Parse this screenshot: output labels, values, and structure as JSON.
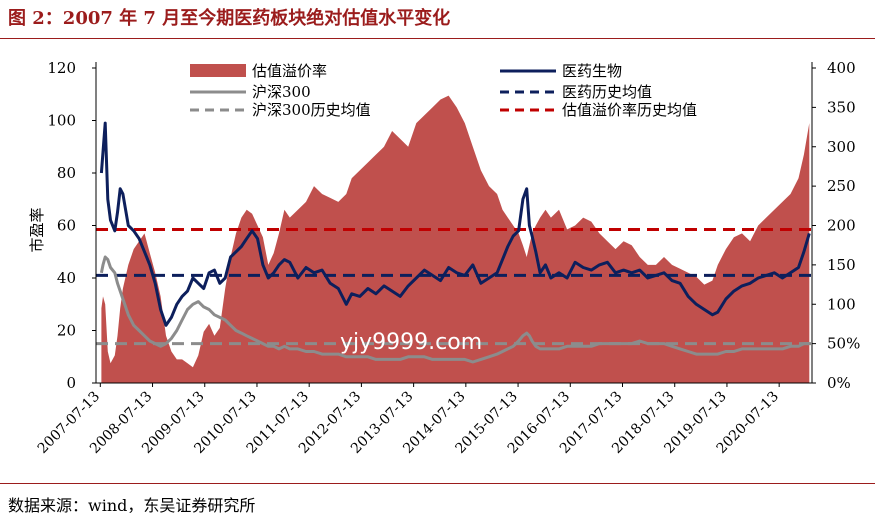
{
  "header": {
    "title": "图 2：2007 年 7 月至今期医药板块绝对估值水平变化"
  },
  "footer": {
    "source": "数据来源：wind，东吴证券研究所"
  },
  "watermark": {
    "text": "yjy9999.com"
  },
  "colors": {
    "area": "#c0504d",
    "pharma": "#0d1f5c",
    "hs300": "#8c8c8c",
    "hs300_avg": "#8c8c8c",
    "pharma_avg": "#0d1f5c",
    "premium_avg": "#c00000",
    "title": "#9b1c1c"
  },
  "chart_data": {
    "type": "line",
    "title": "",
    "ylabel": "市盈率",
    "ylim": [
      0,
      120
    ],
    "y2lim": [
      0,
      400
    ],
    "y_ticks": [
      "0",
      "20",
      "40",
      "60",
      "80",
      "100",
      "120"
    ],
    "y2_ticks": [
      "0%",
      "50%",
      "100",
      "150",
      "200",
      "250",
      "300",
      "350",
      "400"
    ],
    "x_ticks": [
      "2007-07-13",
      "2008-07-13",
      "2009-07-13",
      "2010-07-13",
      "2011-07-13",
      "2012-07-13",
      "2013-07-13",
      "2014-07-13",
      "2015-07-13",
      "2016-07-13",
      "2017-07-13",
      "2018-07-13",
      "2019-07-13",
      "2020-07-13"
    ],
    "x_range": [
      2007.45,
      2020.75
    ],
    "legend": [
      {
        "name": "估值溢价率",
        "style": "area"
      },
      {
        "name": "医药生物",
        "style": "solid"
      },
      {
        "name": "沪深300",
        "style": "solid"
      },
      {
        "name": "医药历史均值",
        "style": "dashed"
      },
      {
        "name": "沪深300历史均值",
        "style": "dashed"
      },
      {
        "name": "估值溢价率历史均值",
        "style": "dashed"
      }
    ],
    "x": [
      2007.55,
      2007.58,
      2007.62,
      2007.67,
      2007.72,
      2007.8,
      2007.85,
      2007.9,
      2007.95,
      2008.05,
      2008.15,
      2008.25,
      2008.35,
      2008.45,
      2008.55,
      2008.65,
      2008.75,
      2008.85,
      2008.95,
      2009.05,
      2009.15,
      2009.25,
      2009.35,
      2009.45,
      2009.55,
      2009.65,
      2009.75,
      2009.85,
      2009.95,
      2010.05,
      2010.15,
      2010.25,
      2010.35,
      2010.45,
      2010.55,
      2010.65,
      2010.75,
      2010.85,
      2010.95,
      2011.05,
      2011.2,
      2011.35,
      2011.5,
      2011.65,
      2011.8,
      2011.95,
      2012.1,
      2012.2,
      2012.35,
      2012.5,
      2012.65,
      2012.8,
      2012.95,
      2013.1,
      2013.25,
      2013.4,
      2013.55,
      2013.7,
      2013.85,
      2014.0,
      2014.15,
      2014.3,
      2014.45,
      2014.6,
      2014.75,
      2014.9,
      2015.0,
      2015.1,
      2015.2,
      2015.3,
      2015.38,
      2015.45,
      2015.5,
      2015.55,
      2015.62,
      2015.7,
      2015.8,
      2015.9,
      2016.05,
      2016.2,
      2016.35,
      2016.5,
      2016.65,
      2016.8,
      2016.95,
      2017.1,
      2017.25,
      2017.4,
      2017.55,
      2017.7,
      2017.85,
      2018.0,
      2018.15,
      2018.3,
      2018.45,
      2018.6,
      2018.75,
      2018.9,
      2019.0,
      2019.15,
      2019.3,
      2019.45,
      2019.6,
      2019.75,
      2019.9,
      2020.05,
      2020.2,
      2020.35,
      2020.5,
      2020.6,
      2020.7
    ],
    "series": [
      {
        "name": "医药生物",
        "axis": "left",
        "values": [
          80,
          88,
          99,
          70,
          62,
          58,
          65,
          74,
          72,
          60,
          58,
          55,
          50,
          45,
          38,
          28,
          22,
          25,
          30,
          33,
          35,
          40,
          38,
          36,
          42,
          43,
          38,
          40,
          48,
          50,
          52,
          55,
          58,
          55,
          45,
          40,
          42,
          45,
          47,
          46,
          40,
          44,
          42,
          43,
          38,
          36,
          30,
          34,
          33,
          36,
          34,
          37,
          35,
          33,
          37,
          40,
          43,
          41,
          39,
          44,
          42,
          41,
          45,
          38,
          40,
          42,
          47,
          52,
          56,
          58,
          70,
          74,
          60,
          56,
          50,
          42,
          45,
          40,
          42,
          40,
          46,
          44,
          43,
          45,
          46,
          42,
          43,
          42,
          43,
          40,
          41,
          42,
          39,
          38,
          33,
          30,
          28,
          26,
          27,
          32,
          35,
          37,
          38,
          40,
          41,
          42,
          40,
          42,
          44,
          50,
          57
        ]
      },
      {
        "name": "沪深300",
        "axis": "left",
        "values": [
          42,
          45,
          48,
          47,
          44,
          42,
          38,
          35,
          32,
          26,
          22,
          20,
          18,
          16,
          15,
          14,
          15,
          17,
          20,
          24,
          28,
          30,
          31,
          29,
          28,
          26,
          25,
          24,
          22,
          20,
          19,
          18,
          17,
          16,
          15,
          14,
          14,
          13,
          14,
          13,
          13,
          12,
          12,
          11,
          11,
          11,
          10,
          10,
          10,
          10,
          9,
          9,
          9,
          9,
          10,
          10,
          10,
          9,
          9,
          9,
          9,
          9,
          8,
          9,
          10,
          11,
          12,
          13,
          14,
          16,
          18,
          19,
          18,
          16,
          14,
          13,
          13,
          13,
          13,
          14,
          14,
          14,
          14,
          15,
          15,
          15,
          15,
          15,
          16,
          15,
          15,
          15,
          14,
          13,
          12,
          11,
          11,
          11,
          11,
          12,
          12,
          13,
          13,
          13,
          13,
          13,
          13,
          14,
          14,
          15,
          15
        ]
      },
      {
        "name": "估值溢价率",
        "axis": "right",
        "values": [
          95,
          110,
          100,
          40,
          25,
          35,
          60,
          95,
          120,
          150,
          170,
          180,
          190,
          165,
          140,
          110,
          60,
          40,
          30,
          30,
          25,
          20,
          35,
          65,
          75,
          60,
          70,
          120,
          160,
          190,
          210,
          220,
          215,
          200,
          185,
          150,
          165,
          190,
          220,
          210,
          220,
          230,
          250,
          240,
          235,
          230,
          240,
          260,
          270,
          280,
          290,
          300,
          320,
          310,
          300,
          330,
          340,
          350,
          360,
          365,
          350,
          330,
          300,
          270,
          250,
          240,
          220,
          210,
          200,
          190,
          175,
          160,
          175,
          190,
          200,
          210,
          220,
          210,
          220,
          195,
          200,
          210,
          205,
          190,
          180,
          170,
          180,
          175,
          160,
          150,
          150,
          160,
          150,
          145,
          140,
          135,
          125,
          130,
          150,
          170,
          185,
          190,
          180,
          200,
          210,
          220,
          230,
          240,
          260,
          290,
          330
        ]
      },
      {
        "name": "医药历史均值",
        "axis": "left",
        "constant": 41
      },
      {
        "name": "沪深300历史均值",
        "axis": "left",
        "constant": 15
      },
      {
        "name": "估值溢价率历史均值",
        "axis": "right",
        "constant": 195
      }
    ],
    "grid": false,
    "legend_position": "top"
  }
}
